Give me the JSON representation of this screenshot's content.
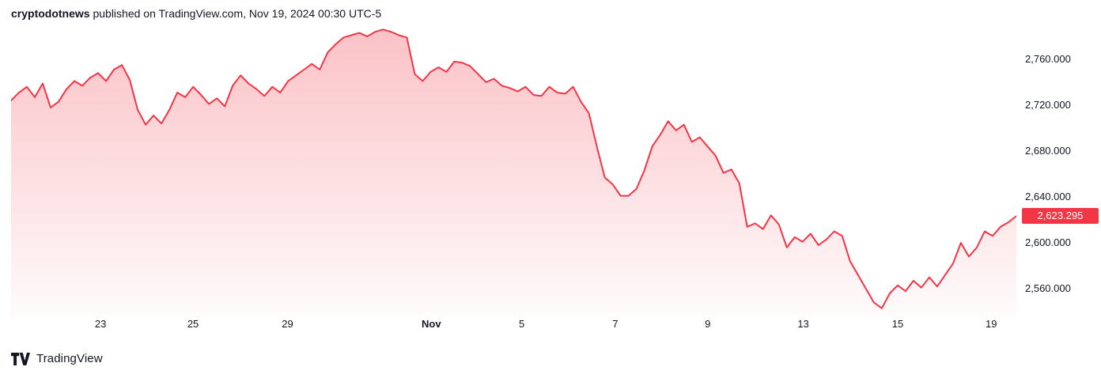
{
  "header": {
    "author": "cryptodotnews",
    "details": " published on TradingView.com, Nov 19, 2024 00:30 UTC-5"
  },
  "footer": {
    "brand": "TradingView"
  },
  "chart_data": {
    "type": "area",
    "title": "",
    "series_name": "price",
    "grid": "off",
    "line_color": "#F23645",
    "fill_top": "rgba(242,54,69,0.30)",
    "fill_bottom": "rgba(242,54,69,0.02)",
    "badge_color": "#F23645",
    "ylim": [
      2536,
      2791
    ],
    "last_price": 2623.295,
    "last_price_label": "2,623.295",
    "y_ticks": [
      {
        "value": 2760,
        "label": "2,760.000"
      },
      {
        "value": 2720,
        "label": "2,720.000"
      },
      {
        "value": 2680,
        "label": "2,680.000"
      },
      {
        "value": 2640,
        "label": "2,640.000"
      },
      {
        "value": 2600,
        "label": "2,600.000"
      },
      {
        "value": 2560,
        "label": "2,560.000"
      }
    ],
    "x_ticks": [
      {
        "label": "23",
        "pos": 0.089,
        "bold": false
      },
      {
        "label": "25",
        "pos": 0.181,
        "bold": false
      },
      {
        "label": "29",
        "pos": 0.275,
        "bold": false
      },
      {
        "label": "Nov",
        "pos": 0.418,
        "bold": true
      },
      {
        "label": "5",
        "pos": 0.508,
        "bold": false
      },
      {
        "label": "7",
        "pos": 0.601,
        "bold": false
      },
      {
        "label": "9",
        "pos": 0.693,
        "bold": false
      },
      {
        "label": "13",
        "pos": 0.788,
        "bold": false
      },
      {
        "label": "15",
        "pos": 0.882,
        "bold": false
      },
      {
        "label": "19",
        "pos": 0.975,
        "bold": false
      }
    ],
    "prices": [
      2724,
      2731,
      2736,
      2727,
      2739,
      2718,
      2723,
      2734,
      2741,
      2737,
      2744,
      2748,
      2741,
      2751,
      2755,
      2742,
      2716,
      2703,
      2711,
      2704,
      2716,
      2731,
      2727,
      2736,
      2729,
      2721,
      2726,
      2719,
      2737,
      2746,
      2739,
      2734,
      2728,
      2736,
      2731,
      2741,
      2746,
      2751,
      2756,
      2751,
      2766,
      2773,
      2779,
      2781,
      2783,
      2780,
      2784,
      2786,
      2784,
      2781,
      2779,
      2747,
      2741,
      2749,
      2753,
      2749,
      2758,
      2757,
      2754,
      2747,
      2740,
      2743,
      2737,
      2735,
      2732,
      2736,
      2729,
      2728,
      2736,
      2731,
      2730,
      2736,
      2723,
      2713,
      2684,
      2657,
      2651,
      2641,
      2641,
      2647,
      2663,
      2684,
      2694,
      2706,
      2698,
      2703,
      2688,
      2692,
      2684,
      2676,
      2661,
      2664,
      2652,
      2614,
      2617,
      2612,
      2624,
      2616,
      2596,
      2605,
      2601,
      2608,
      2598,
      2603,
      2610,
      2606,
      2584,
      2572,
      2560,
      2548,
      2543,
      2556,
      2563,
      2558,
      2567,
      2561,
      2570,
      2562,
      2572,
      2582,
      2600,
      2588,
      2596,
      2610,
      2606,
      2614,
      2618,
      2623.295
    ]
  }
}
